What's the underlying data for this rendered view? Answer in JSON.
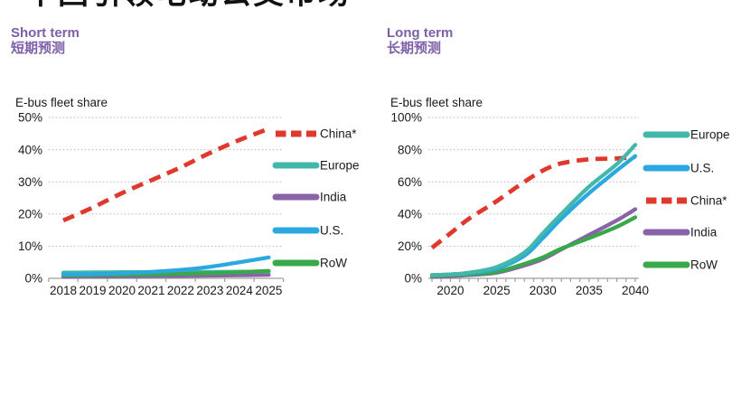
{
  "title": "中国引领电动公交市场",
  "panels": [
    {
      "heading_en": "Short term",
      "heading_zh": "短期预测",
      "axis_label": "E-bus fleet share"
    },
    {
      "heading_en": "Long term",
      "heading_zh": "长期预测",
      "axis_label": "E-bus fleet share"
    }
  ],
  "colors": {
    "heading_purple": "#7d5fa7",
    "title_black": "#111111",
    "text_black": "#1a1a1a",
    "axis_gray": "#9d9d9d",
    "grid_gray": "#b5b5b5",
    "china_red": "#df382c",
    "europe_teal": "#43b8a9",
    "india_purple": "#8962a8",
    "us_blue": "#2ca8e0",
    "row_green": "#38a84b"
  },
  "chart_data": [
    {
      "type": "line",
      "title": "Short term 短期预测",
      "ylabel": "E-bus fleet share",
      "xlabel": "",
      "x": [
        2018,
        2019,
        2020,
        2021,
        2022,
        2023,
        2024,
        2025
      ],
      "x_tick_labels": [
        "2018",
        "2019",
        "2020",
        "2021",
        "2022",
        "2023",
        "2024",
        "2025"
      ],
      "ylim": [
        0,
        50
      ],
      "y_ticks": [
        0,
        10,
        20,
        30,
        40,
        50
      ],
      "y_tick_labels": [
        "0%",
        "10%",
        "20%",
        "30%",
        "40%",
        "50%"
      ],
      "grid": "horizontal dotted",
      "legend_position": "right",
      "legend_order": [
        "China*",
        "Europe",
        "India",
        "U.S.",
        "RoW"
      ],
      "series": [
        {
          "name": "China*",
          "color": "#df382c",
          "style": "dashed",
          "values": [
            18,
            22,
            26.5,
            30.5,
            34.5,
            39,
            43,
            46.5
          ]
        },
        {
          "name": "Europe",
          "color": "#43b8a9",
          "style": "solid",
          "values": [
            1.8,
            1.85,
            1.9,
            1.95,
            2.0,
            2.0,
            2.05,
            2.1
          ]
        },
        {
          "name": "India",
          "color": "#8962a8",
          "style": "solid",
          "values": [
            0.5,
            0.55,
            0.6,
            0.7,
            0.75,
            0.85,
            0.95,
            1.1
          ]
        },
        {
          "name": "U.S.",
          "color": "#2ca8e0",
          "style": "solid",
          "values": [
            1.2,
            1.3,
            1.6,
            2.0,
            2.6,
            3.6,
            5.0,
            6.5
          ]
        },
        {
          "name": "RoW",
          "color": "#38a84b",
          "style": "solid",
          "values": [
            0.9,
            1.0,
            1.1,
            1.2,
            1.4,
            1.6,
            1.9,
            2.3
          ]
        }
      ]
    },
    {
      "type": "line",
      "title": "Long term 长期预测",
      "ylabel": "E-bus fleet share",
      "xlabel": "",
      "x": [
        2018,
        2020,
        2022,
        2025,
        2028,
        2030,
        2032,
        2035,
        2038,
        2040
      ],
      "x_tick_labels": [
        "2020",
        "2025",
        "2030",
        "2035",
        "2040"
      ],
      "x_label_years": [
        2020,
        2025,
        2030,
        2035,
        2040
      ],
      "ylim": [
        0,
        100
      ],
      "y_ticks": [
        0,
        20,
        40,
        60,
        80,
        100
      ],
      "y_tick_labels": [
        "0%",
        "20%",
        "40%",
        "60%",
        "80%",
        "100%"
      ],
      "grid": "horizontal dotted",
      "legend_position": "right",
      "legend_order": [
        "Europe",
        "U.S.",
        "China*",
        "India",
        "RoW"
      ],
      "series": [
        {
          "name": "Europe",
          "color": "#43b8a9",
          "style": "solid",
          "values": [
            2,
            2.5,
            3.5,
            7,
            16,
            28,
            40,
            57,
            71,
            83
          ]
        },
        {
          "name": "U.S.",
          "color": "#2ca8e0",
          "style": "solid",
          "values": [
            2,
            2.4,
            3.2,
            6,
            14,
            25,
            37,
            53,
            67,
            76
          ]
        },
        {
          "name": "China*",
          "color": "#df382c",
          "style": "dashed",
          "values": [
            19,
            28,
            37,
            48,
            60,
            67,
            71.5,
            74,
            74.5,
            75.5
          ]
        },
        {
          "name": "India",
          "color": "#8962a8",
          "style": "solid",
          "values": [
            1,
            1.3,
            2,
            3.5,
            8,
            12,
            18,
            27,
            36,
            43
          ]
        },
        {
          "name": "RoW",
          "color": "#38a84b",
          "style": "solid",
          "values": [
            1.5,
            2,
            2.5,
            4,
            9,
            13,
            18.5,
            25,
            32,
            38
          ]
        }
      ]
    }
  ]
}
